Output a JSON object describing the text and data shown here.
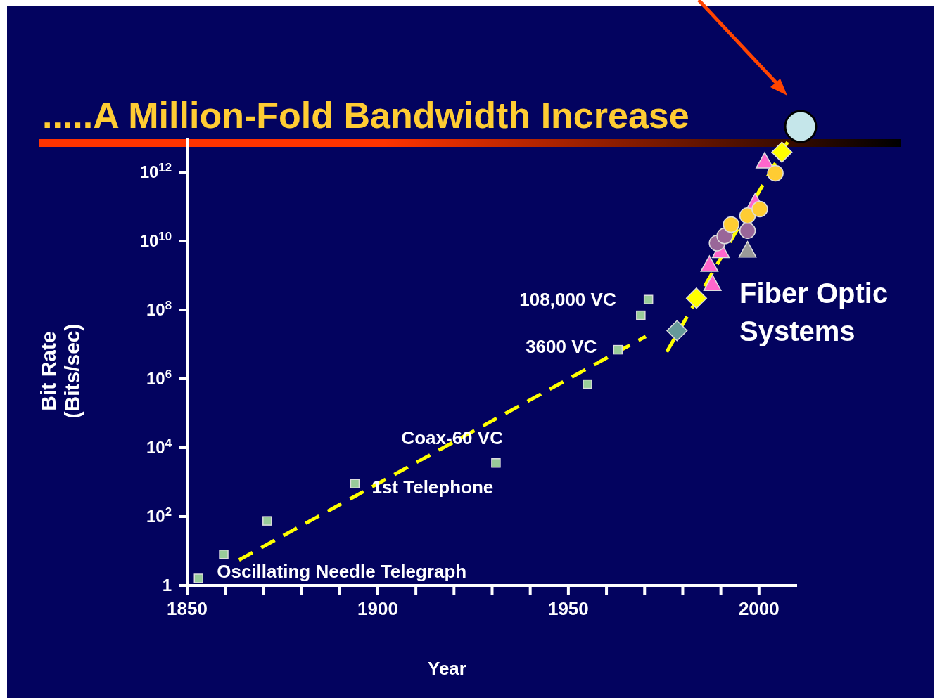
{
  "chart_data": {
    "type": "scatter",
    "title": ".....A Million-Fold Bandwidth Increase",
    "xlabel": "Year",
    "ylabel": "Bit Rate\n(Bits/sec)",
    "log": "y",
    "grid": false,
    "xlim": [
      1850,
      2010
    ],
    "xticks": [
      1850,
      {
        "value": 1860,
        "label": null
      },
      {
        "value": 1870,
        "label": null
      },
      {
        "value": 1880,
        "label": null
      },
      {
        "value": 1890,
        "label": null
      },
      1900,
      {
        "value": 1910,
        "label": null
      },
      {
        "value": 1920,
        "label": null
      },
      {
        "value": 1930,
        "label": null
      },
      {
        "value": 1940,
        "label": null
      },
      1950,
      {
        "value": 1960,
        "label": null
      },
      {
        "value": 1970,
        "label": null
      },
      {
        "value": 1980,
        "label": null
      },
      {
        "value": 1990,
        "label": null
      },
      2000
    ],
    "ylim": [
      1,
      10000000000000.0
    ],
    "yticks": [
      1,
      {
        "value": 100,
        "label": "10$^{2}$"
      },
      {
        "value": 10000,
        "label": "10$^{4}$"
      },
      {
        "value": 1000000,
        "label": "10$^{6}$"
      },
      {
        "value": 100000000,
        "label": "10$^{8}$"
      },
      {
        "value": 10000000000,
        "label": "10$^{10}$"
      },
      {
        "value": 1000000000000,
        "label": "10$^{12}$"
      }
    ],
    "series": [
      {
        "type": "line",
        "color": "#ffff00",
        "line_style": "dashed",
        "marker": "none",
        "x": [
          1863.6,
          1970.3
        ],
        "values": [
          5.5,
          17000000
        ]
      },
      {
        "type": "line",
        "color": "#ffff00",
        "line_style": "dashed",
        "marker": "none",
        "x": [
          1975.8,
          2007.5
        ],
        "values": [
          6000000,
          7500000000000
        ]
      },
      {
        "color": "#99cc99",
        "marker": "square",
        "x": [
          1853,
          1859.6,
          1871,
          1894,
          1931,
          1955,
          1963,
          1969,
          1971
        ],
        "values": [
          1.6,
          8,
          75,
          900,
          3600,
          700000,
          7000000,
          70000000,
          200000000
        ]
      },
      {
        "color": "#669999",
        "marker": "diamond",
        "x": [
          1978.5
        ],
        "values": [
          25000000
        ]
      },
      {
        "color": "#ffff00",
        "marker": "diamond",
        "x": [
          1983.6,
          2006
        ],
        "values": [
          220000000,
          3800000000000
        ]
      },
      {
        "color": "#ff66cc",
        "marker": "triangle",
        "x": [
          1987.8,
          1987,
          1990,
          1999,
          2001.5
        ],
        "values": [
          560000000,
          2000000000,
          5000000000,
          130000000000,
          2000000000000
        ]
      },
      {
        "color": "#996699",
        "marker": "circle",
        "x": [
          1989,
          1991,
          1997
        ],
        "values": [
          8700000000,
          14000000000,
          20000000000
        ]
      },
      {
        "color": "#ffcc33",
        "marker": "circle",
        "x": [
          1992.7,
          1997,
          2000.2,
          2004.3
        ],
        "values": [
          30000000000,
          55000000000,
          85000000000,
          930000000000
        ]
      },
      {
        "color": "#999999",
        "marker": "triangle",
        "x": [
          1997
        ],
        "values": [
          5200000000
        ]
      }
    ],
    "annotations": [
      {
        "text": "Oscillating Needle Telegraph",
        "x": 1853,
        "y": 1.6
      },
      {
        "text": "1st Telephone",
        "x": 1894,
        "y": 900
      },
      {
        "text": "Coax-60 VC",
        "x": 1931,
        "y": 3600
      },
      {
        "text": "3600 VC",
        "x": 1963,
        "y": 7000000
      },
      {
        "text": "108,000 VC",
        "x": 1971,
        "y": 200000000
      },
      "Fiber Optic Systems"
    ]
  }
}
